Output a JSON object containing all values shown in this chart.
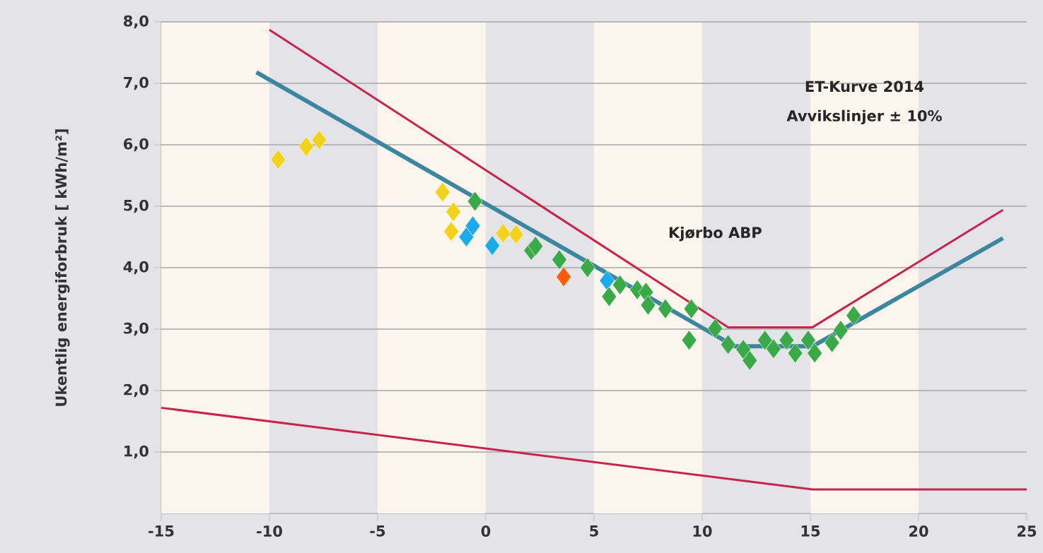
{
  "chart_data": {
    "type": "scatter",
    "ylabel": "Ukentlig energiforbruk [ kWh/m²]",
    "annotations": [
      "ET-Kurve 2014",
      "Avvikslinjer ± 10%",
      "Kjørbo ABP"
    ],
    "xlim": [
      -15,
      25
    ],
    "xticks": [
      -15,
      -10,
      -5,
      0,
      5,
      10,
      15,
      20,
      25
    ],
    "ylim": [
      0,
      8
    ],
    "yticks": [
      {
        "value": 1,
        "label": "1,0"
      },
      {
        "value": 2,
        "label": "2,0"
      },
      {
        "value": 3,
        "label": "3,0"
      },
      {
        "value": 4,
        "label": "4,0"
      },
      {
        "value": 5,
        "label": "5,0"
      },
      {
        "value": 6,
        "label": "6,0"
      },
      {
        "value": 7,
        "label": "7,0"
      },
      {
        "value": 8,
        "label": "8,0"
      }
    ],
    "grid": "y",
    "marker": "diamond",
    "bands": [
      {
        "axis": "x",
        "from": -15,
        "to": -10,
        "color": "#fcf5ee"
      },
      {
        "axis": "x",
        "from": -5,
        "to": 0,
        "color": "#fcf5ee"
      },
      {
        "axis": "x",
        "from": 5,
        "to": 10,
        "color": "#fcf5ee"
      },
      {
        "axis": "x",
        "from": 15,
        "to": 20,
        "color": "#fcf5ee"
      }
    ],
    "series": [
      {
        "type": "line",
        "marker": "none",
        "color": "#c8234a",
        "x": [
          -10,
          11.2,
          15.1,
          23.9
        ],
        "values": [
          7.87,
          3.03,
          3.03,
          4.94
        ]
      },
      {
        "type": "line",
        "marker": "none",
        "color": "#3d86a0",
        "x": [
          -10.6,
          11.5,
          15.1,
          23.9
        ],
        "values": [
          7.18,
          2.72,
          2.72,
          4.48
        ]
      },
      {
        "type": "line",
        "marker": "none",
        "color": "#c8234a",
        "x": [
          -15,
          15.1,
          25
        ],
        "values": [
          1.72,
          0.39,
          0.39
        ]
      },
      {
        "color": "#f2d21a",
        "x": [
          -9.6,
          -8.3,
          -7.7,
          -2.0,
          -1.5,
          -1.6,
          0.8,
          1.4
        ],
        "values": [
          5.76,
          5.97,
          6.08,
          5.23,
          4.91,
          4.59,
          4.56,
          4.54
        ]
      },
      {
        "color": "#1aabe8",
        "x": [
          -0.9,
          -0.6,
          0.3,
          5.6
        ],
        "values": [
          4.5,
          4.68,
          4.36,
          3.79
        ]
      },
      {
        "color": "#3aaa48",
        "x": [
          -0.5,
          2.1,
          2.3,
          3.4,
          4.7,
          5.7,
          6.2,
          7.0,
          7.4,
          7.5,
          8.3,
          9.5,
          9.4,
          10.6,
          11.2,
          11.9,
          12.2,
          12.9,
          13.3,
          13.9,
          14.3,
          14.9,
          15.2,
          16.0,
          16.4,
          17.0
        ],
        "values": [
          5.08,
          4.28,
          4.35,
          4.13,
          4.0,
          3.53,
          3.72,
          3.64,
          3.6,
          3.39,
          3.33,
          3.33,
          2.82,
          3.01,
          2.75,
          2.67,
          2.49,
          2.82,
          2.68,
          2.82,
          2.61,
          2.82,
          2.61,
          2.78,
          2.98,
          3.22
        ]
      },
      {
        "color": "#ff5a0a",
        "x": [
          3.6
        ],
        "values": [
          3.85
        ]
      }
    ]
  }
}
